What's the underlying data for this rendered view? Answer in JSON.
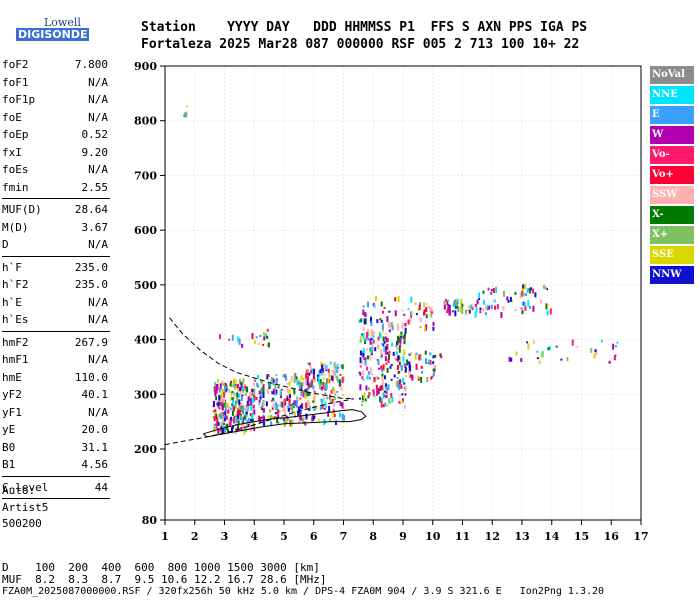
{
  "logo": {
    "line1": "Lowell",
    "line2": "DIGISONDE"
  },
  "header": {
    "labels": "Station    YYYY DAY   DDD HHMMSS P1  FFS S AXN PPS IGA PS",
    "values": "Fortaleza 2025 Mar28 087 000000 RSF 005 2 713 100 10+ 22"
  },
  "params": {
    "g1": [
      [
        "foF2",
        "7.800"
      ],
      [
        "foF1",
        "N/A"
      ],
      [
        "foF1p",
        "N/A"
      ],
      [
        "foE",
        "N/A"
      ],
      [
        "foEp",
        "0.52"
      ],
      [
        "fxI",
        "9.20"
      ],
      [
        "foEs",
        "N/A"
      ],
      [
        "fmin",
        "2.55"
      ]
    ],
    "g2": [
      [
        "MUF(D)",
        "28.64"
      ],
      [
        "M(D)",
        "3.67"
      ],
      [
        "D",
        "N/A"
      ]
    ],
    "g3": [
      [
        "h`F",
        "235.0"
      ],
      [
        "h`F2",
        "235.0"
      ],
      [
        "h`E",
        "N/A"
      ],
      [
        "h`Es",
        "N/A"
      ]
    ],
    "g4": [
      [
        "hmF2",
        "267.9"
      ],
      [
        "hmF1",
        "N/A"
      ],
      [
        "hmE",
        "110.0"
      ],
      [
        "yF2",
        "40.1"
      ],
      [
        "yF1",
        "N/A"
      ],
      [
        "yE",
        "20.0"
      ],
      [
        "B0",
        "31.1"
      ],
      [
        "B1",
        "4.56"
      ]
    ],
    "g5": [
      [
        "C-level",
        "44"
      ]
    ]
  },
  "auto": {
    "line1": "Auto:",
    "line2": "Artist5",
    "line3": "500200"
  },
  "legend": [
    {
      "label": "NoVal",
      "color": "#8c8c8c"
    },
    {
      "label": "NNE",
      "color": "#00e5ff"
    },
    {
      "label": "E",
      "color": "#3aa0ff"
    },
    {
      "label": "W",
      "color": "#b000b0"
    },
    {
      "label": "Vo-",
      "color": "#ff1a6e"
    },
    {
      "label": "Vo+",
      "color": "#ff0033"
    },
    {
      "label": "SSW",
      "color": "#ffb0b0"
    },
    {
      "label": "X-",
      "color": "#007a00"
    },
    {
      "label": "X+",
      "color": "#7fc060"
    },
    {
      "label": "SSE",
      "color": "#d8d800"
    },
    {
      "label": "NNW",
      "color": "#1010d0"
    }
  ],
  "bottom": {
    "d_line": "D    100  200  400  600  800 1000 1500 3000 [km]",
    "muf_line": "MUF  8.2  8.3  8.7  9.5 10.6 12.2 16.7 28.6 [MHz]",
    "file_line": "FZA0M_2025087000000.RSF / 320fx256h 50 kHz 5.0 km / DPS-4 FZA0M 904 / 3.9 S 321.6 E   Ion2Png 1.3.20"
  },
  "chart_data": {
    "type": "scatter",
    "xlim": [
      1,
      17
    ],
    "ylim": [
      80,
      900
    ],
    "xticks": [
      1,
      2,
      3,
      4,
      5,
      6,
      7,
      8,
      9,
      10,
      11,
      12,
      13,
      14,
      15,
      16,
      17
    ],
    "yticks": [
      80,
      200,
      300,
      400,
      500,
      600,
      700,
      800,
      900
    ],
    "grid": true,
    "trace_dashed": {
      "x": [
        1.0,
        1.6,
        2.4,
        3.2,
        4.0,
        4.8,
        5.4,
        6.0,
        6.6,
        7.0,
        7.35
      ],
      "y": [
        208,
        214,
        222,
        232,
        244,
        258,
        268,
        276,
        284,
        288,
        292
      ]
    },
    "trace_dashed_upper": {
      "x": [
        1.15,
        1.6,
        2.2,
        2.8,
        3.4,
        4.0,
        4.6,
        5.2,
        5.8,
        6.4,
        6.9,
        7.35
      ],
      "y": [
        440,
        410,
        380,
        356,
        340,
        330,
        320,
        312,
        304,
        298,
        293,
        292
      ]
    },
    "trace_solid": {
      "x": [
        2.3,
        2.8,
        3.4,
        4.0,
        4.6,
        5.2,
        5.8,
        6.4,
        6.9,
        7.3,
        7.6,
        7.75,
        7.6,
        7.2,
        6.6,
        5.8,
        5.0,
        4.2,
        3.4,
        2.8,
        2.4
      ],
      "y": [
        228,
        236,
        244,
        250,
        255,
        258,
        262,
        266,
        270,
        272,
        268,
        260,
        254,
        250,
        250,
        248,
        246,
        240,
        232,
        226,
        222
      ]
    },
    "echo_clusters": [
      {
        "x": [
          2.6,
          4.0
        ],
        "y": [
          235,
          330
        ],
        "n": 260
      },
      {
        "x": [
          4.0,
          5.6
        ],
        "y": [
          250,
          340
        ],
        "n": 180
      },
      {
        "x": [
          5.6,
          7.0
        ],
        "y": [
          250,
          360
        ],
        "n": 160
      },
      {
        "x": [
          7.5,
          9.1
        ],
        "y": [
          280,
          420
        ],
        "n": 200
      },
      {
        "x": [
          9.1,
          10.3
        ],
        "y": [
          330,
          380
        ],
        "n": 40
      },
      {
        "x": [
          7.5,
          10.0
        ],
        "y": [
          420,
          480
        ],
        "n": 70
      },
      {
        "x": [
          10.3,
          11.5
        ],
        "y": [
          450,
          475
        ],
        "n": 40
      },
      {
        "x": [
          11.5,
          14.0
        ],
        "y": [
          450,
          505
        ],
        "n": 60
      },
      {
        "x": [
          12.5,
          16.8
        ],
        "y": [
          360,
          400
        ],
        "n": 30
      },
      {
        "x": [
          1.5,
          1.7
        ],
        "y": [
          800,
          830
        ],
        "n": 6
      },
      {
        "x": [
          2.8,
          4.5
        ],
        "y": [
          390,
          420
        ],
        "n": 20
      }
    ]
  }
}
